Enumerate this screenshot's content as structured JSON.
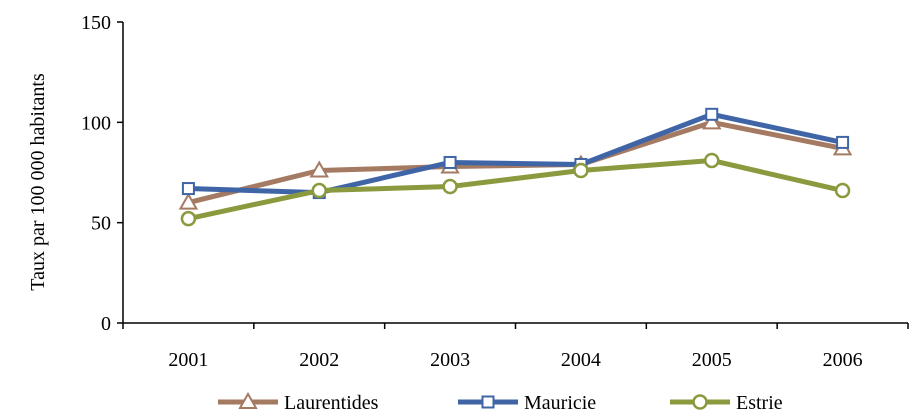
{
  "chart_data": {
    "type": "line",
    "title": "",
    "xlabel": "",
    "ylabel": "Taux par 100 000 habitants",
    "categories": [
      "2001",
      "2002",
      "2003",
      "2004",
      "2005",
      "2006"
    ],
    "ylim": [
      0,
      150
    ],
    "yticks": [
      0,
      50,
      100,
      150
    ],
    "grid": false,
    "legend_position": "bottom",
    "series": [
      {
        "name": "Laurentides",
        "values": [
          60,
          76,
          78,
          79,
          100,
          87
        ],
        "color": "#a57a62",
        "marker": "triangle"
      },
      {
        "name": "Mauricie",
        "values": [
          67,
          65,
          80,
          79,
          104,
          90
        ],
        "color": "#3f65a6",
        "marker": "square"
      },
      {
        "name": "Estrie",
        "values": [
          52,
          66,
          68,
          76,
          81,
          66
        ],
        "color": "#8b9a3e",
        "marker": "circle"
      }
    ]
  }
}
